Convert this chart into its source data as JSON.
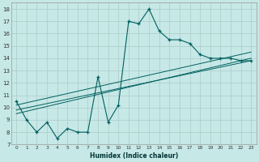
{
  "xlabel": "Humidex (Indice chaleur)",
  "background_color": "#c6e8e6",
  "grid_color": "#b0d0ce",
  "line_color": "#006060",
  "xlim": [
    -0.5,
    23.5
  ],
  "ylim": [
    7,
    18.5
  ],
  "xticks": [
    0,
    1,
    2,
    3,
    4,
    5,
    6,
    7,
    8,
    9,
    10,
    11,
    12,
    13,
    14,
    15,
    16,
    17,
    18,
    19,
    20,
    21,
    22,
    23
  ],
  "yticks": [
    7,
    8,
    9,
    10,
    11,
    12,
    13,
    14,
    15,
    16,
    17,
    18
  ],
  "main_series": {
    "x": [
      0,
      1,
      2,
      3,
      4,
      5,
      6,
      7,
      8,
      9,
      10,
      11,
      12,
      13,
      14,
      15,
      16,
      17,
      18,
      19,
      20,
      21,
      22,
      23
    ],
    "y": [
      10.5,
      9.0,
      8.0,
      8.8,
      7.5,
      8.3,
      8.0,
      8.0,
      12.5,
      8.8,
      10.2,
      17.0,
      16.8,
      18.0,
      16.2,
      15.5,
      15.5,
      15.2,
      14.3,
      14.0,
      14.0,
      14.0,
      13.8,
      13.8
    ]
  },
  "reg_lines": [
    {
      "x": [
        0,
        23
      ],
      "y": [
        9.5,
        14.0
      ]
    },
    {
      "x": [
        0,
        23
      ],
      "y": [
        9.8,
        13.8
      ]
    },
    {
      "x": [
        0,
        23
      ],
      "y": [
        10.2,
        14.5
      ]
    }
  ]
}
